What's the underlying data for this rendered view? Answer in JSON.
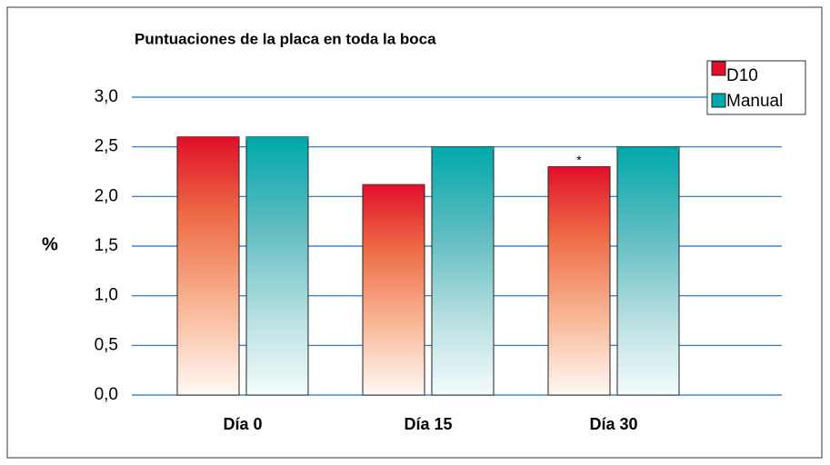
{
  "chart_data": {
    "type": "bar",
    "title": "Puntuaciones de la placa en toda la boca",
    "y_label": "%",
    "categories": [
      "Día 0",
      "Día 15",
      "Día 30"
    ],
    "series": [
      {
        "name": "D10",
        "color": "#e0102a",
        "values": [
          2.6,
          2.12,
          2.3
        ]
      },
      {
        "name": "Manual",
        "color": "#00a8ac",
        "values": [
          2.6,
          2.5,
          2.5
        ]
      }
    ],
    "annotation": "*",
    "ylim": [
      0,
      3
    ],
    "yticks": [
      {
        "value": 0,
        "label": "0,0"
      },
      {
        "value": 0.5,
        "label": "0,5"
      },
      {
        "value": 1,
        "label": "1,0"
      },
      {
        "value": 1.5,
        "label": "1,5"
      },
      {
        "value": 2,
        "label": "2,0"
      },
      {
        "value": 2.5,
        "label": "2,5"
      },
      {
        "value": 3,
        "label": "3,0"
      }
    ],
    "grid": true,
    "legend": "top-right"
  }
}
